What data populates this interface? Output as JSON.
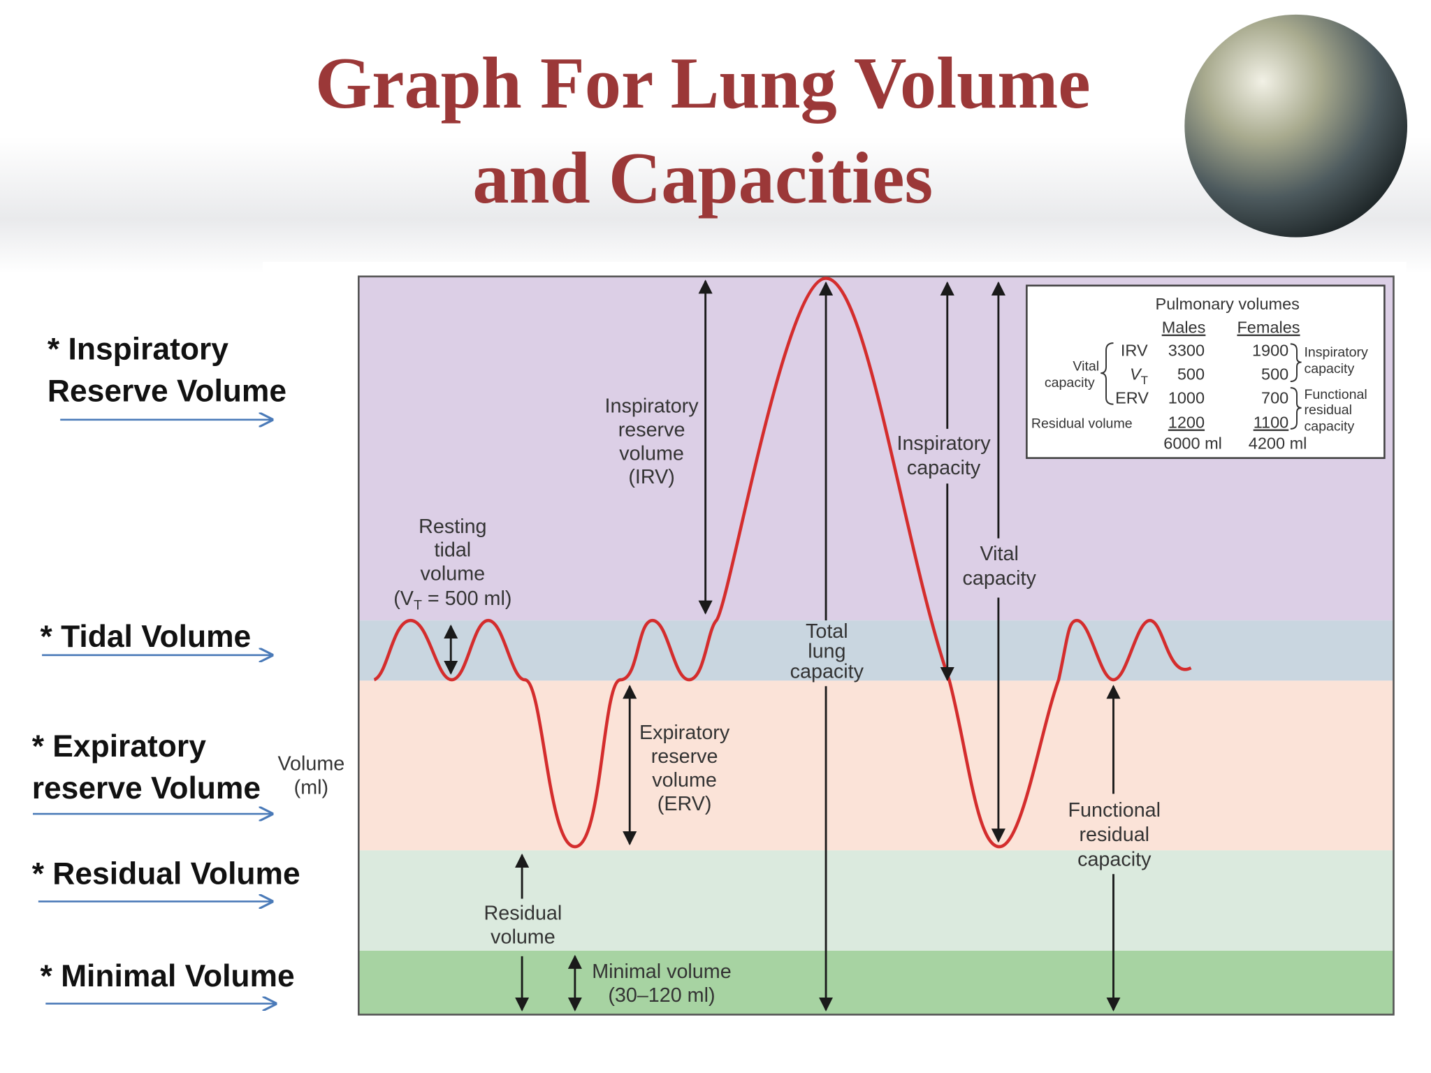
{
  "title": {
    "lines": [
      "Graph For Lung Volume",
      "and Capacities"
    ]
  },
  "side_labels": [
    {
      "lines": [
        "* Inspiratory",
        "Reserve Volume"
      ]
    },
    {
      "lines": [
        "* Tidal Volume"
      ]
    },
    {
      "lines": [
        "* Expiratory",
        "reserve Volume"
      ]
    },
    {
      "lines": [
        "* Residual Volume"
      ]
    },
    {
      "lines": [
        "* Minimal Volume"
      ]
    }
  ],
  "diagram": {
    "axis_label": [
      "Volume",
      "(ml)"
    ],
    "resting_tidal": {
      "lines": [
        "Resting",
        "tidal",
        "volume"
      ],
      "formula": [
        "(V",
        "T",
        " = 500 ml)"
      ]
    },
    "irv": [
      "Inspiratory",
      "reserve",
      "volume",
      "(IRV)"
    ],
    "erv": [
      "Expiratory",
      "reserve",
      "volume",
      "(ERV)"
    ],
    "residual": [
      "Residual",
      "volume"
    ],
    "minimal": [
      "Minimal volume",
      "(30–120 ml)"
    ],
    "tlc": [
      "Total",
      "lung",
      "capacity"
    ],
    "ic": [
      "Inspiratory",
      "capacity"
    ],
    "vc": [
      "Vital",
      "capacity"
    ],
    "frc": [
      "Functional",
      "residual",
      "capacity"
    ]
  },
  "table": {
    "title": "Pulmonary volumes",
    "headers": [
      "Males",
      "Females"
    ],
    "group": [
      "Vital",
      "capacity"
    ],
    "rows": [
      {
        "label": "IRV",
        "males": "3300",
        "females": "1900"
      },
      {
        "label": {
          "main": "V",
          "sub": "T"
        },
        "males": "500",
        "females": "500"
      },
      {
        "label": "ERV",
        "males": "1000",
        "females": "700"
      },
      {
        "label": "Residual volume",
        "males": "1200",
        "females": "1100"
      }
    ],
    "totals": [
      "6000 ml",
      "4200 ml"
    ],
    "brackets": [
      [
        "Inspiratory",
        "capacity"
      ],
      [
        "Functional",
        "residual",
        "capacity"
      ]
    ]
  }
}
